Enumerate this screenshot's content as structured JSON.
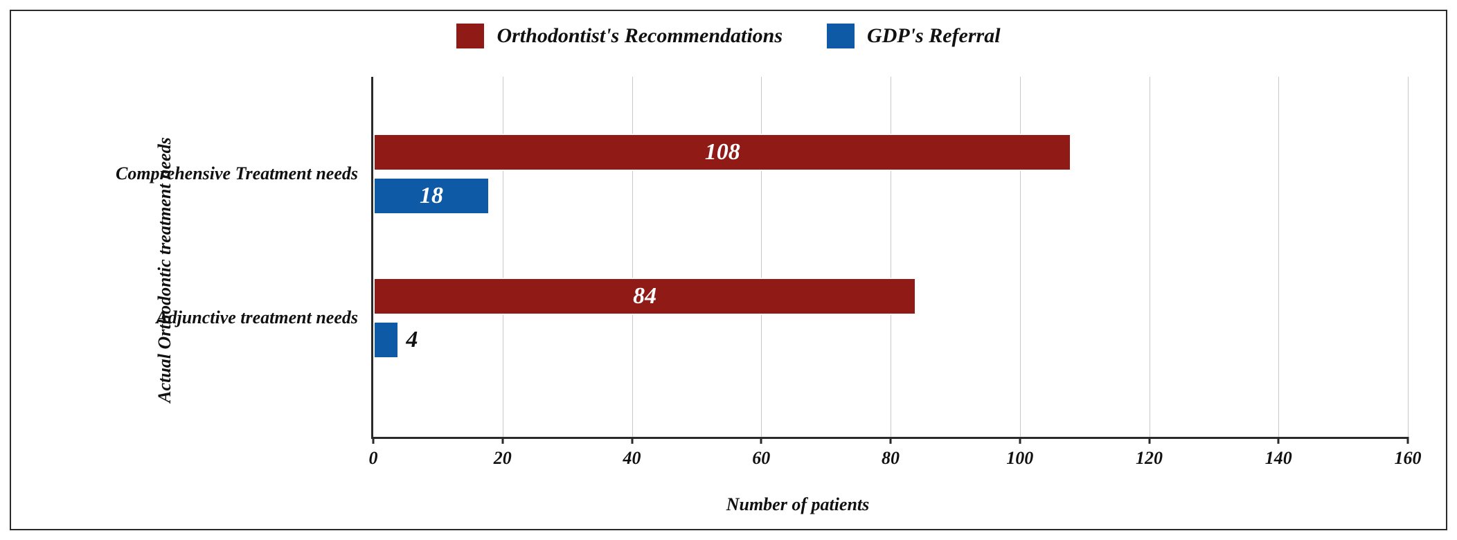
{
  "chart": {
    "type": "horizontal-grouped-bar",
    "background_color": "#ffffff",
    "border_color": "#2a2a2a",
    "grid_color": "#c8c8c8",
    "axis_color": "#2a2a2a",
    "x_axis_title": "Number of patients",
    "y_axis_title": "Actual Orthodontic treatment needs",
    "xlim_min": 0,
    "xlim_max": 160,
    "xtick_step": 20,
    "ticks": [
      {
        "value": 0,
        "label": "0"
      },
      {
        "value": 20,
        "label": "20"
      },
      {
        "value": 40,
        "label": "40"
      },
      {
        "value": 60,
        "label": "60"
      },
      {
        "value": 80,
        "label": "80"
      },
      {
        "value": 100,
        "label": "100"
      },
      {
        "value": 120,
        "label": "120"
      },
      {
        "value": 140,
        "label": "140"
      },
      {
        "value": 160,
        "label": "160"
      }
    ],
    "legend": {
      "position": "top-center",
      "items": [
        {
          "label": "Orthodontist's Recommendations",
          "color": "#8f1a16"
        },
        {
          "label": "GDP's Referral",
          "color": "#0e5aa6"
        }
      ]
    },
    "series_colors": {
      "orthodontist": "#8f1a16",
      "gdp": "#0e5aa6"
    },
    "bar_label_color": "#ffffff",
    "bar_border_color": "#ffffff",
    "categories": [
      {
        "name": "Comprehensive Treatment needs",
        "values": {
          "orthodontist": 108,
          "gdp": 18
        }
      },
      {
        "name": "Adjunctive treatment needs",
        "values": {
          "orthodontist": 84,
          "gdp": 4
        }
      }
    ],
    "label_fontsize": 26,
    "legend_fontsize": 30,
    "bar_label_fontsize": 34,
    "font_style": "italic",
    "font_weight": "bold",
    "font_family": "serif"
  }
}
